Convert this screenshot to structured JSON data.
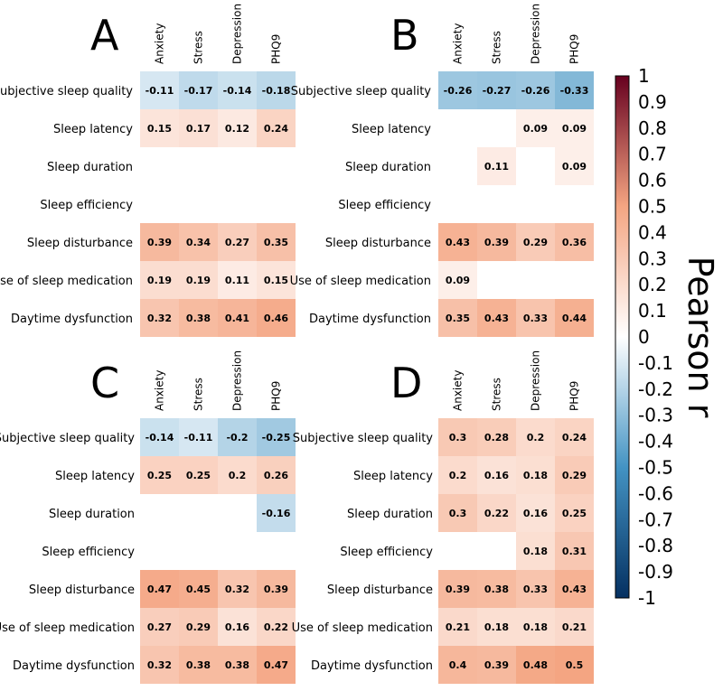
{
  "chart_data": [
    {
      "type": "heatmap",
      "panel_label": "A",
      "columns": [
        "Anxiety",
        "Stress",
        "Depression",
        "PHQ9"
      ],
      "rows": [
        "Subjective sleep quality",
        "Sleep latency",
        "Sleep duration",
        "Sleep efficiency",
        "Sleep disturbance",
        "Use of sleep medication",
        "Daytime dysfunction"
      ],
      "values": [
        [
          -0.11,
          -0.17,
          -0.14,
          -0.18
        ],
        [
          0.15,
          0.17,
          0.12,
          0.24
        ],
        [
          null,
          null,
          null,
          null
        ],
        [
          null,
          null,
          null,
          null
        ],
        [
          0.39,
          0.34,
          0.27,
          0.35
        ],
        [
          0.19,
          0.19,
          0.11,
          0.15
        ],
        [
          0.32,
          0.38,
          0.41,
          0.46
        ]
      ]
    },
    {
      "type": "heatmap",
      "panel_label": "B",
      "columns": [
        "Anxiety",
        "Stress",
        "Depression",
        "PHQ9"
      ],
      "rows": [
        "Subjective sleep quality",
        "Sleep latency",
        "Sleep duration",
        "Sleep efficiency",
        "Sleep disturbance",
        "Use of sleep medication",
        "Daytime dysfunction"
      ],
      "values": [
        [
          -0.26,
          -0.27,
          -0.26,
          -0.33
        ],
        [
          null,
          null,
          0.09,
          0.09
        ],
        [
          null,
          0.11,
          null,
          0.09
        ],
        [
          null,
          null,
          null,
          null
        ],
        [
          0.43,
          0.39,
          0.29,
          0.36
        ],
        [
          0.09,
          null,
          null,
          null
        ],
        [
          0.35,
          0.43,
          0.33,
          0.44
        ]
      ]
    },
    {
      "type": "heatmap",
      "panel_label": "C",
      "columns": [
        "Anxiety",
        "Stress",
        "Depression",
        "PHQ9"
      ],
      "rows": [
        "Subjective sleep quality",
        "Sleep latency",
        "Sleep duration",
        "Sleep efficiency",
        "Sleep disturbance",
        "Use of sleep medication",
        "Daytime dysfunction"
      ],
      "values": [
        [
          -0.14,
          -0.11,
          -0.2,
          -0.25
        ],
        [
          0.25,
          0.25,
          0.2,
          0.26
        ],
        [
          null,
          null,
          null,
          -0.16
        ],
        [
          null,
          null,
          null,
          null
        ],
        [
          0.47,
          0.45,
          0.32,
          0.39
        ],
        [
          0.27,
          0.29,
          0.16,
          0.22
        ],
        [
          0.32,
          0.38,
          0.38,
          0.47
        ]
      ]
    },
    {
      "type": "heatmap",
      "panel_label": "D",
      "columns": [
        "Anxiety",
        "Stress",
        "Depression",
        "PHQ9"
      ],
      "rows": [
        "Subjective sleep quality",
        "Sleep latency",
        "Sleep duration",
        "Sleep efficiency",
        "Sleep disturbance",
        "Use of sleep medication",
        "Daytime dysfunction"
      ],
      "values": [
        [
          0.3,
          0.28,
          0.2,
          0.24
        ],
        [
          0.2,
          0.16,
          0.18,
          0.29
        ],
        [
          0.3,
          0.22,
          0.16,
          0.25
        ],
        [
          null,
          null,
          0.18,
          0.31
        ],
        [
          0.39,
          0.38,
          0.33,
          0.43
        ],
        [
          0.21,
          0.18,
          0.18,
          0.21
        ],
        [
          0.4,
          0.39,
          0.48,
          0.5
        ]
      ]
    }
  ],
  "colorbar": {
    "title": "Pearson r",
    "range": [
      -1,
      1
    ],
    "tick_labels": [
      "1",
      "0.9",
      "0.8",
      "0.7",
      "0.6",
      "0.5",
      "0.4",
      "0.3",
      "0.2",
      "0.1",
      "0",
      "-0.1",
      "-0.2",
      "-0.3",
      "-0.4",
      "-0.5",
      "-0.6",
      "-0.7",
      "-0.8",
      "-0.9",
      "-1"
    ],
    "colors": {
      "strong_negative": "#053061",
      "moderate_negative": "#4393c3",
      "neutral": "#ffffff",
      "moderate_positive": "#f4a582",
      "strong_positive": "#67001f"
    }
  }
}
